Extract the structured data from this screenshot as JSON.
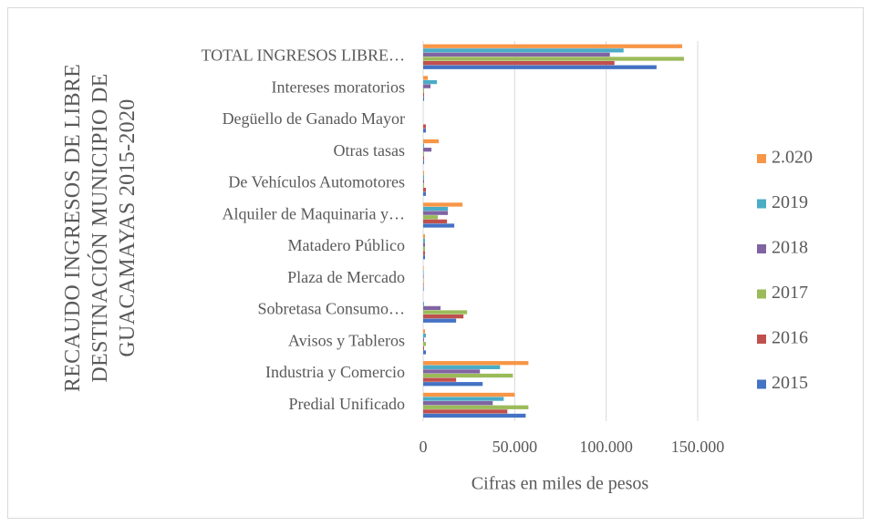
{
  "chart_data": {
    "type": "hbar",
    "title": "RECAUDO INGRESOS DE LIBRE DESTINACIÓN MUNICIPIO DE GUACAMAYAS 2015-2020",
    "x_label": "Cifras en miles de pesos",
    "categories": [
      "Predial Unificado",
      "Industria y Comercio",
      "Avisos y Tableros",
      "Sobretasa Consumo…",
      "Plaza de Mercado",
      "Matadero Público",
      "Alquiler de Maquinaria y…",
      "De Vehículos Automotores",
      "Otras tasas",
      "Degüello de Ganado Mayor",
      "Intereses moratorios",
      "TOTAL INGRESOS LIBRE…"
    ],
    "series": [
      {
        "name": "2015",
        "color": "#4472c4",
        "values": [
          56000,
          32500,
          1500,
          18000,
          300,
          1000,
          17000,
          1500,
          500,
          1500,
          500,
          127500
        ]
      },
      {
        "name": "2016",
        "color": "#c0504d",
        "values": [
          46000,
          18000,
          500,
          22000,
          300,
          1000,
          13000,
          1500,
          500,
          1500,
          500,
          104500
        ]
      },
      {
        "name": "2017",
        "color": "#9bbb59",
        "values": [
          57500,
          49000,
          1500,
          24000,
          300,
          1000,
          8000,
          500,
          500,
          0,
          500,
          142500
        ]
      },
      {
        "name": "2018",
        "color": "#8064a2",
        "values": [
          38000,
          31000,
          500,
          9500,
          300,
          1000,
          13500,
          500,
          4500,
          0,
          4000,
          102000
        ]
      },
      {
        "name": "2019",
        "color": "#4bacc6",
        "values": [
          44000,
          42000,
          1500,
          500,
          300,
          1000,
          13500,
          500,
          500,
          0,
          7500,
          109500
        ]
      },
      {
        "name": "2.020",
        "color": "#f79646",
        "values": [
          50000,
          57500,
          1000,
          0,
          300,
          1000,
          21500,
          500,
          8500,
          0,
          2500,
          141500
        ]
      }
    ],
    "xlim": [
      0,
      150000
    ],
    "xticks": [
      0,
      {
        "value": 50000,
        "label": "50.000"
      },
      {
        "value": 100000,
        "label": "100.000"
      },
      {
        "value": 150000,
        "label": "150.000"
      }
    ],
    "grid": true,
    "legend": "right"
  }
}
